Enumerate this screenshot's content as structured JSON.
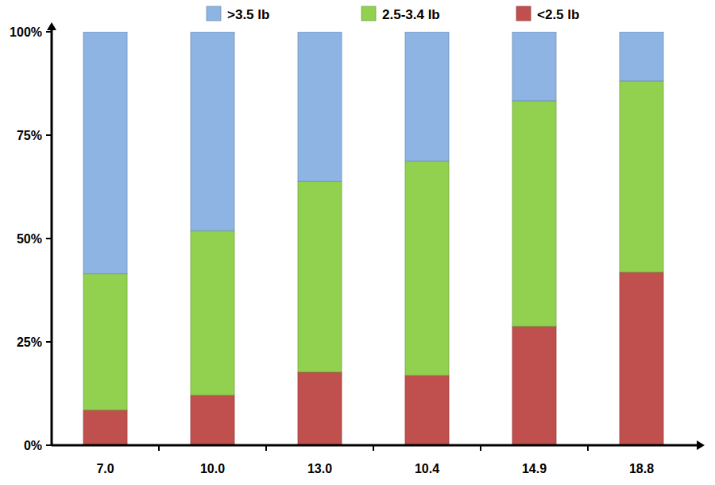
{
  "chart_data": {
    "type": "bar",
    "stacked": true,
    "grid": false,
    "legend": "top",
    "categories": [
      "7.0",
      "10.0",
      "13.0",
      "10.4",
      "14.9",
      "18.8"
    ],
    "series": [
      {
        "name": "<2.5 lb",
        "color": "#c0504d",
        "values": [
          8.5,
          12.1,
          17.7,
          16.9,
          28.8,
          41.9
        ]
      },
      {
        "name": "2.5-3.4 lb",
        "color": "#92d050",
        "values": [
          33.0,
          39.8,
          46.1,
          51.8,
          54.5,
          46.2
        ]
      },
      {
        "name": ">3.5 lb",
        "color": "#8db4e2",
        "values": [
          58.5,
          48.1,
          36.2,
          31.3,
          16.7,
          11.9
        ]
      }
    ],
    "ylim": [
      0,
      100
    ],
    "yticks": [
      {
        "value": 0,
        "label": "0%"
      },
      {
        "value": 25,
        "label": "25%"
      },
      {
        "value": 50,
        "label": "50%"
      },
      {
        "value": 75,
        "label": "75%"
      },
      {
        "value": 100,
        "label": "100%"
      }
    ]
  }
}
